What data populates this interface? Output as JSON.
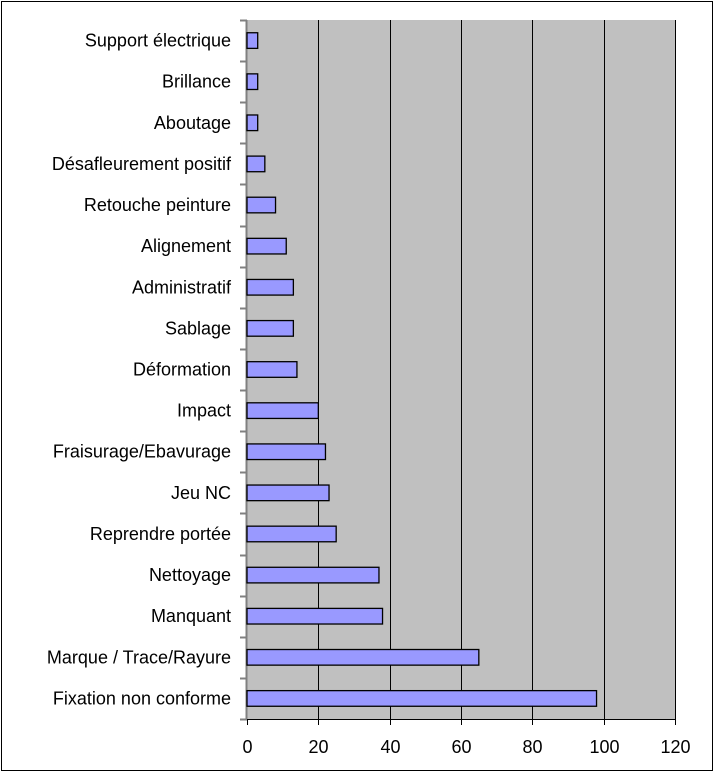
{
  "chart_data": {
    "type": "bar",
    "orientation": "horizontal",
    "title": "",
    "xlabel": "",
    "ylabel": "",
    "categories": [
      "Support électrique",
      "Brillance",
      "Aboutage",
      "Désafleurement positif",
      "Retouche peinture",
      "Alignement",
      "Administratif",
      "Sablage",
      "Déformation",
      "Impact",
      "Fraisurage/Ebavurage",
      "Jeu NC",
      "Reprendre portée",
      "Nettoyage",
      "Manquant",
      "Marque / Trace/Rayure",
      "Fixation non conforme"
    ],
    "values": [
      3,
      3,
      3,
      5,
      8,
      11,
      13,
      13,
      14,
      20,
      22,
      23,
      25,
      37,
      38,
      65,
      98
    ],
    "xlim": [
      0,
      120
    ],
    "xticks": [
      "0",
      "20",
      "40",
      "60",
      "80",
      "100",
      "120"
    ],
    "grid": true,
    "legend": "none",
    "colors": {
      "bar": "#9999FF",
      "plot_bg": "#C0C0C0",
      "grid": "#000000"
    }
  }
}
